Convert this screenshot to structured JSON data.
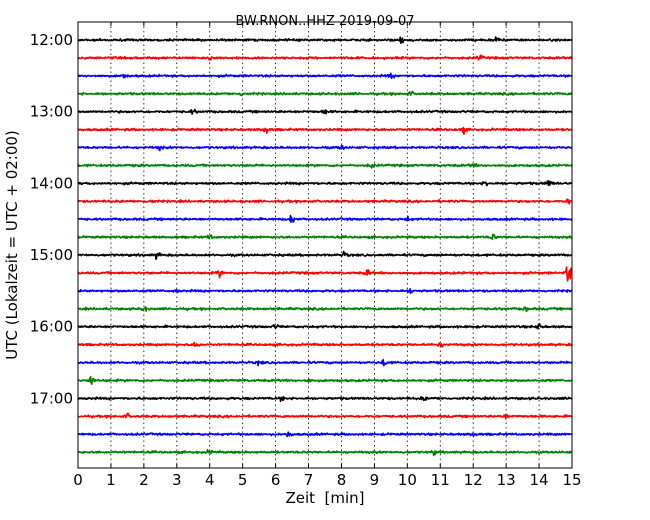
{
  "chart_data": {
    "type": "line",
    "title": "BW.RNON..HHZ 2019-09-07",
    "xlabel": "Zeit  [min]",
    "ylabel": "UTC (Lokalzeit = UTC + 02:00)",
    "xlim": [
      0,
      15
    ],
    "x_ticks": [
      "0",
      "1",
      "2",
      "3",
      "4",
      "5",
      "6",
      "7",
      "8",
      "9",
      "10",
      "11",
      "12",
      "13",
      "14",
      "15"
    ],
    "y_ticks": [
      "12:00",
      "13:00",
      "14:00",
      "15:00",
      "16:00",
      "17:00"
    ],
    "grid": "vertical dotted",
    "trace_colors": [
      "#000000",
      "#ff0000",
      "#0000ff",
      "#008000"
    ],
    "traces": [
      {
        "start": "12:00",
        "color": "#000000",
        "events": [
          {
            "t": 9.8,
            "amp": 0.6
          },
          {
            "t": 12.7,
            "amp": 0.45
          }
        ]
      },
      {
        "start": "12:15",
        "color": "#ff0000",
        "events": [
          {
            "t": 12.2,
            "amp": 0.4
          },
          {
            "t": 4.0,
            "amp": 0.3
          }
        ]
      },
      {
        "start": "12:30",
        "color": "#0000ff",
        "events": [
          {
            "t": 9.5,
            "amp": 0.35
          },
          {
            "t": 1.4,
            "amp": 0.3
          }
        ]
      },
      {
        "start": "12:45",
        "color": "#008000",
        "events": [
          {
            "t": 5.0,
            "amp": 0.35
          },
          {
            "t": 10.1,
            "amp": 0.3
          }
        ]
      },
      {
        "start": "13:00",
        "color": "#000000",
        "events": [
          {
            "t": 7.5,
            "amp": 0.35
          },
          {
            "t": 3.5,
            "amp": 0.3
          }
        ]
      },
      {
        "start": "13:15",
        "color": "#ff0000",
        "events": [
          {
            "t": 5.7,
            "amp": 0.6
          },
          {
            "t": 11.7,
            "amp": 0.4
          }
        ]
      },
      {
        "start": "13:30",
        "color": "#0000ff",
        "events": [
          {
            "t": 8.0,
            "amp": 0.3
          },
          {
            "t": 2.5,
            "amp": 0.3
          }
        ]
      },
      {
        "start": "13:45",
        "color": "#008000",
        "events": [
          {
            "t": 8.9,
            "amp": 0.4
          },
          {
            "t": 12.0,
            "amp": 0.3
          }
        ]
      },
      {
        "start": "14:00",
        "color": "#000000",
        "events": [
          {
            "t": 12.4,
            "amp": 0.5
          },
          {
            "t": 14.3,
            "amp": 0.55
          }
        ]
      },
      {
        "start": "14:15",
        "color": "#ff0000",
        "events": [
          {
            "t": 2.2,
            "amp": 0.35
          },
          {
            "t": 14.9,
            "amp": 0.4
          }
        ]
      },
      {
        "start": "14:30",
        "color": "#0000ff",
        "events": [
          {
            "t": 6.5,
            "amp": 0.7
          },
          {
            "t": 10.0,
            "amp": 0.35
          }
        ]
      },
      {
        "start": "14:45",
        "color": "#008000",
        "events": [
          {
            "t": 12.6,
            "amp": 0.4
          },
          {
            "t": 4.0,
            "amp": 0.25
          }
        ]
      },
      {
        "start": "15:00",
        "color": "#000000",
        "events": [
          {
            "t": 2.4,
            "amp": 0.45
          },
          {
            "t": 8.1,
            "amp": 0.4
          }
        ]
      },
      {
        "start": "15:15",
        "color": "#ff0000",
        "events": [
          {
            "t": 14.9,
            "amp": 1.6
          },
          {
            "t": 4.3,
            "amp": 0.5
          },
          {
            "t": 8.8,
            "amp": 0.4
          }
        ]
      },
      {
        "start": "15:30",
        "color": "#0000ff",
        "events": [
          {
            "t": 10.1,
            "amp": 0.35
          },
          {
            "t": 3.0,
            "amp": 0.25
          }
        ]
      },
      {
        "start": "15:45",
        "color": "#008000",
        "events": [
          {
            "t": 2.0,
            "amp": 0.35
          },
          {
            "t": 13.6,
            "amp": 0.3
          }
        ]
      },
      {
        "start": "16:00",
        "color": "#000000",
        "events": [
          {
            "t": 14.0,
            "amp": 0.4
          },
          {
            "t": 6.0,
            "amp": 0.3
          }
        ]
      },
      {
        "start": "16:15",
        "color": "#ff0000",
        "events": [
          {
            "t": 3.6,
            "amp": 0.45
          },
          {
            "t": 11.0,
            "amp": 0.3
          }
        ]
      },
      {
        "start": "16:30",
        "color": "#0000ff",
        "events": [
          {
            "t": 9.3,
            "amp": 0.45
          },
          {
            "t": 5.5,
            "amp": 0.3
          }
        ]
      },
      {
        "start": "16:45",
        "color": "#008000",
        "events": [
          {
            "t": 0.4,
            "amp": 0.9
          },
          {
            "t": 7.0,
            "amp": 0.25
          }
        ]
      },
      {
        "start": "17:00",
        "color": "#000000",
        "events": [
          {
            "t": 6.2,
            "amp": 0.3
          },
          {
            "t": 10.5,
            "amp": 0.3
          }
        ]
      },
      {
        "start": "17:15",
        "color": "#ff0000",
        "events": [
          {
            "t": 1.5,
            "amp": 0.3
          },
          {
            "t": 13.0,
            "amp": 0.3
          }
        ]
      },
      {
        "start": "17:30",
        "color": "#0000ff",
        "events": [
          {
            "t": 6.4,
            "amp": 0.45
          },
          {
            "t": 12.0,
            "amp": 0.3
          }
        ]
      },
      {
        "start": "17:45",
        "color": "#008000",
        "events": [
          {
            "t": 4.0,
            "amp": 0.3
          },
          {
            "t": 10.8,
            "amp": 0.3
          }
        ]
      }
    ]
  }
}
